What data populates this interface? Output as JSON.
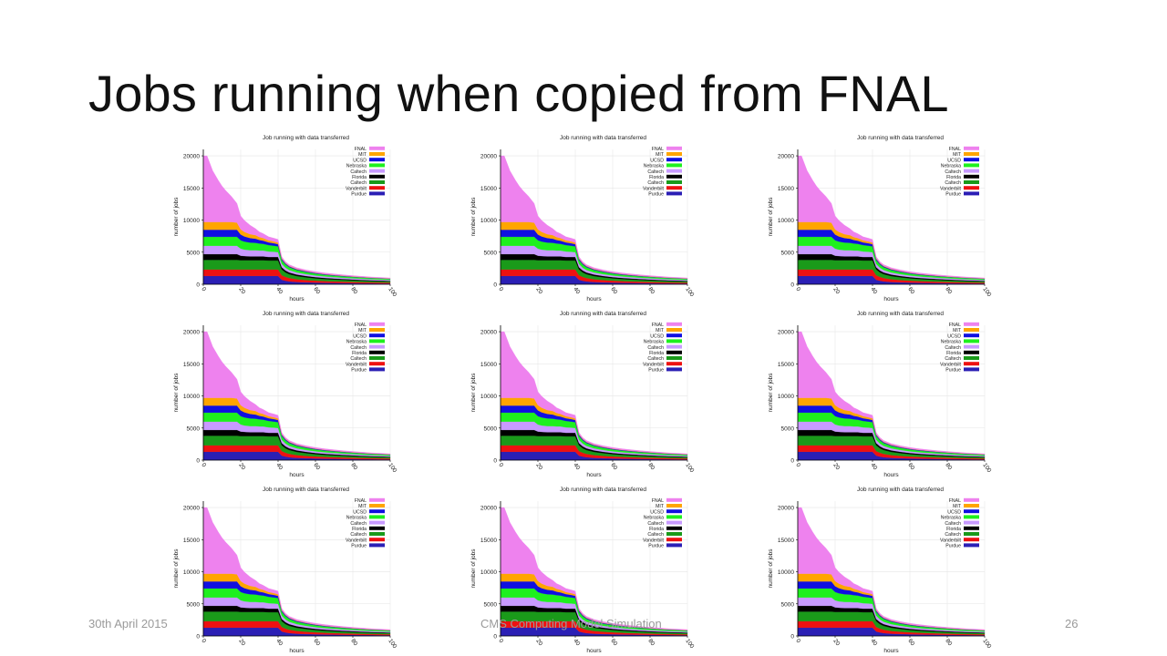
{
  "slide": {
    "title": "Jobs running when copied from FNAL",
    "footer_date": "30th April 2015",
    "footer_center": "CMS Computing Model Simulation",
    "page_number": "26"
  },
  "chart_data": {
    "type": "area",
    "stacked": true,
    "panels": 9,
    "title": "Job running with data transferred",
    "xlabel": "hours",
    "ylabel": "number of jobs",
    "xlim": [
      0,
      100
    ],
    "ylim": [
      0,
      21000
    ],
    "xticks": [
      0,
      20,
      40,
      60,
      80,
      100
    ],
    "yticks": [
      0,
      5000,
      10000,
      15000,
      20000
    ],
    "grid": true,
    "legend_position": "top-right",
    "x": [
      0,
      2,
      5,
      8,
      10,
      12,
      15,
      18,
      20,
      22,
      25,
      28,
      30,
      32,
      35,
      38,
      40,
      42,
      44,
      46,
      50,
      55,
      60,
      65,
      70,
      75,
      80,
      85,
      90,
      95,
      100
    ],
    "series": [
      {
        "name": "Purdue",
        "color": "#2b1fb5",
        "values": [
          1300,
          1300,
          1300,
          1300,
          1300,
          1300,
          1300,
          1300,
          1300,
          1300,
          1300,
          1300,
          1300,
          1300,
          1300,
          1300,
          1300,
          700,
          550,
          450,
          350,
          300,
          260,
          230,
          210,
          190,
          170,
          150,
          140,
          130,
          120
        ]
      },
      {
        "name": "Vanderbilt",
        "color": "#ee1111",
        "values": [
          1000,
          1000,
          1000,
          1000,
          1000,
          1000,
          1000,
          1000,
          1000,
          1000,
          1000,
          1000,
          1000,
          1000,
          1000,
          1000,
          1000,
          700,
          600,
          520,
          430,
          360,
          310,
          270,
          240,
          220,
          200,
          180,
          160,
          150,
          140
        ]
      },
      {
        "name": "Caltech",
        "color": "#1a9a1a",
        "values": [
          1500,
          1500,
          1500,
          1500,
          1500,
          1500,
          1500,
          1500,
          1450,
          1450,
          1450,
          1450,
          1450,
          1450,
          1400,
          1400,
          1400,
          900,
          700,
          600,
          500,
          420,
          360,
          320,
          290,
          260,
          240,
          220,
          200,
          190,
          180
        ]
      },
      {
        "name": "Florida",
        "color": "#000000",
        "values": [
          900,
          900,
          900,
          900,
          900,
          900,
          900,
          900,
          700,
          650,
          600,
          600,
          600,
          600,
          550,
          550,
          550,
          350,
          300,
          270,
          240,
          210,
          190,
          170,
          160,
          150,
          140,
          130,
          120,
          110,
          100
        ]
      },
      {
        "name": "Caltech",
        "color": "#c89aff",
        "values": [
          1300,
          1300,
          1300,
          1300,
          1300,
          1300,
          1300,
          1300,
          1100,
          1000,
          950,
          950,
          900,
          900,
          850,
          800,
          750,
          500,
          420,
          370,
          320,
          280,
          250,
          230,
          210,
          190,
          180,
          170,
          160,
          150,
          140
        ]
      },
      {
        "name": "Nebraska",
        "color": "#1ef01e",
        "values": [
          1400,
          1400,
          1400,
          1400,
          1400,
          1400,
          1400,
          1400,
          1300,
          1250,
          1200,
          1150,
          1100,
          1050,
          1000,
          950,
          900,
          600,
          500,
          440,
          380,
          330,
          290,
          260,
          240,
          220,
          200,
          190,
          180,
          170,
          160
        ]
      },
      {
        "name": "UCSD",
        "color": "#1010e0",
        "values": [
          1100,
          1100,
          1100,
          1100,
          1100,
          1100,
          1100,
          1100,
          900,
          800,
          700,
          650,
          550,
          500,
          420,
          380,
          350,
          180,
          150,
          130,
          110,
          100,
          90,
          80,
          70,
          60,
          55,
          50,
          45,
          40,
          35
        ]
      },
      {
        "name": "MIT",
        "color": "#ffa500",
        "values": [
          1200,
          1200,
          1200,
          1200,
          1200,
          1200,
          1200,
          1100,
          800,
          700,
          600,
          550,
          450,
          400,
          320,
          280,
          250,
          100,
          80,
          70,
          60,
          55,
          50,
          45,
          40,
          35,
          30,
          25,
          20,
          20,
          20
        ]
      },
      {
        "name": "FNAL",
        "color": "#ee82ee",
        "values": [
          10300,
          10300,
          8000,
          6500,
          5600,
          4900,
          4000,
          3000,
          2100,
          1800,
          1400,
          1000,
          800,
          700,
          550,
          500,
          480,
          250,
          220,
          200,
          190,
          180,
          170,
          160,
          150,
          140,
          130,
          120,
          110,
          100,
          90
        ]
      }
    ]
  }
}
